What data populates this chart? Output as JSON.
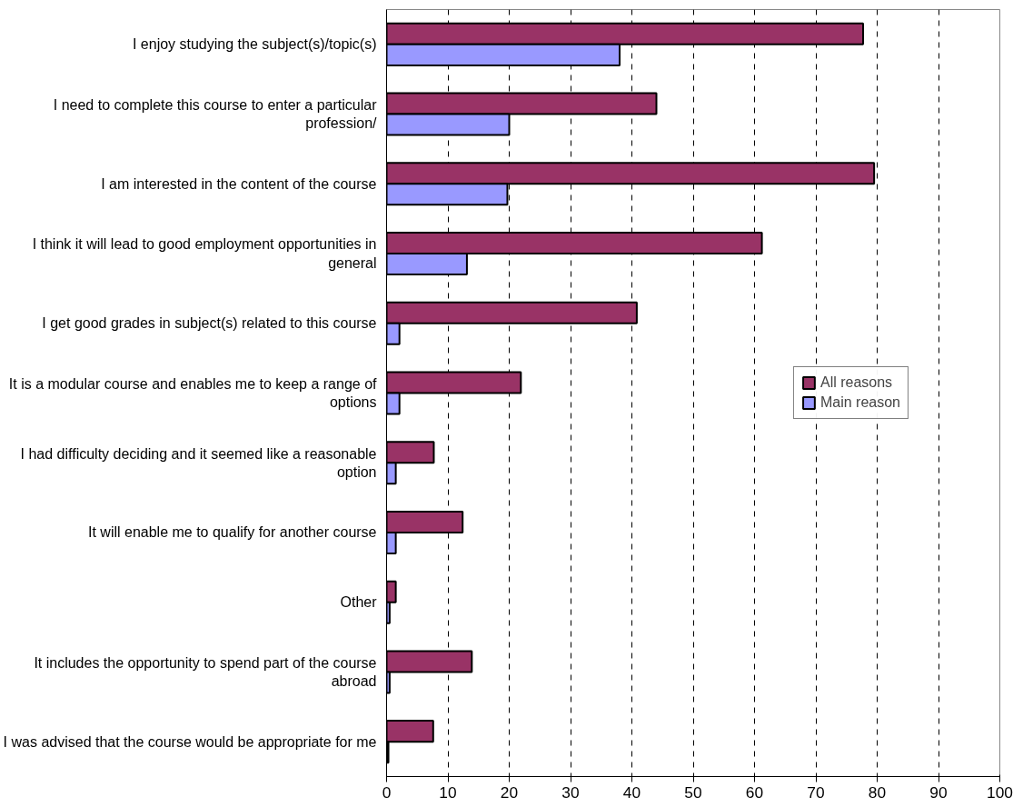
{
  "chart_data": {
    "type": "bar",
    "orientation": "horizontal",
    "categories": [
      "I enjoy studying the subject(s)/topic(s)",
      "I need to complete this course to enter a particular profession/",
      "I am interested in the content of the course",
      "I think it will lead to good employment opportunities in general",
      "I get good grades in subject(s) related to this course",
      "It is a modular course and enables me to keep a range of options",
      "I had difficulty deciding and it seemed like a reasonable option",
      "It will enable me to qualify for another course",
      "Other",
      "It includes the opportunity to spend part of the course abroad",
      "I was advised that the course would be appropriate for me"
    ],
    "series": [
      {
        "name": "All reasons",
        "color": "#993366",
        "values": [
          77.7,
          44.0,
          79.5,
          61.2,
          40.8,
          21.9,
          7.7,
          12.4,
          1.5,
          13.9,
          7.6
        ]
      },
      {
        "name": "Main reason",
        "color": "#9999ff",
        "values": [
          38.0,
          20.0,
          19.7,
          13.1,
          2.1,
          2.1,
          1.5,
          1.5,
          0.5,
          0.5,
          0.3
        ]
      }
    ],
    "xlim": [
      0,
      100
    ],
    "xticks": [
      0,
      10,
      20,
      30,
      40,
      50,
      60,
      70,
      80,
      90,
      100
    ],
    "grid": "x",
    "legend": "right"
  }
}
